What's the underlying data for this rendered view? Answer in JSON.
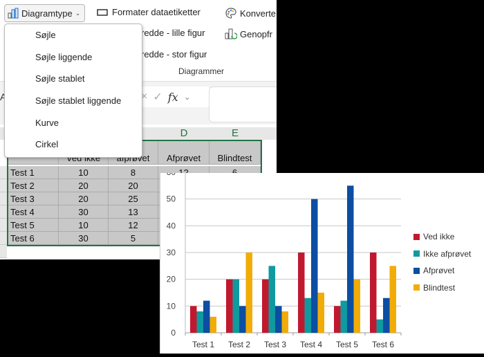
{
  "ribbon": {
    "chart_type_button": "Diagramtype",
    "format_labels_button": "Formater dataetiketter",
    "convert_button": "Konverte",
    "prepare_small_button": "redde - lille figur",
    "refresh_button": "Genopfr",
    "prepare_large_button": "redde - stor figur",
    "group_label": "Diagrammer"
  },
  "dropdown_menu": {
    "items": [
      {
        "label": "Søjle"
      },
      {
        "label": "Søjle liggende"
      },
      {
        "label": "Søjle stablet"
      },
      {
        "label": "Søjle stablet liggende"
      },
      {
        "label": "Kurve"
      },
      {
        "label": "Cirkel"
      }
    ]
  },
  "formula_bar": {
    "cancel_icon": "×",
    "confirm_icon": "✓",
    "fx_label": "fx",
    "chevron": "⌄",
    "name_box_partial": "A"
  },
  "sheet": {
    "column_headers": [
      "D",
      "E"
    ],
    "header_row": [
      "",
      "Ved ikke",
      "afprøvet",
      "Afprøvet",
      "Blindtest"
    ],
    "rows": [
      {
        "label": "Test 1",
        "ved_ikke": "10",
        "ikke_afproevet": "8",
        "afproevet": "12",
        "blindtest": "6"
      },
      {
        "label": "Test 2",
        "ved_ikke": "20",
        "ikke_afproevet": "20"
      },
      {
        "label": "Test 3",
        "ved_ikke": "20",
        "ikke_afproevet": "25"
      },
      {
        "label": "Test 4",
        "ved_ikke": "30",
        "ikke_afproevet": "13"
      },
      {
        "label": "Test 5",
        "ved_ikke": "10",
        "ikke_afproevet": "12"
      },
      {
        "label": "Test 6",
        "ved_ikke": "30",
        "ikke_afproevet": "5"
      }
    ]
  },
  "colors": {
    "ved_ikke": "#c0192f",
    "ikke_afproevet": "#0f9aa0",
    "afproevet": "#0b4ea2",
    "blindtest": "#f2ac08",
    "selection": "#217346"
  },
  "chart_data": {
    "type": "bar",
    "categories": [
      "Test 1",
      "Test 2",
      "Test 3",
      "Test 4",
      "Test 5",
      "Test 6"
    ],
    "series": [
      {
        "name": "Ved ikke",
        "values": [
          10,
          20,
          20,
          30,
          10,
          30
        ]
      },
      {
        "name": "Ikke afprøvet",
        "values": [
          8,
          20,
          25,
          13,
          12,
          5
        ]
      },
      {
        "name": "Afprøvet",
        "values": [
          12,
          10,
          10,
          50,
          55,
          13
        ]
      },
      {
        "name": "Blindtest",
        "values": [
          6,
          30,
          8,
          15,
          20,
          25
        ]
      }
    ],
    "title": "",
    "xlabel": "",
    "ylabel": "",
    "ylim": [
      0,
      60
    ],
    "yticks": [
      0,
      10,
      20,
      30,
      40,
      50,
      60
    ],
    "grid": true,
    "legend_position": "right"
  }
}
